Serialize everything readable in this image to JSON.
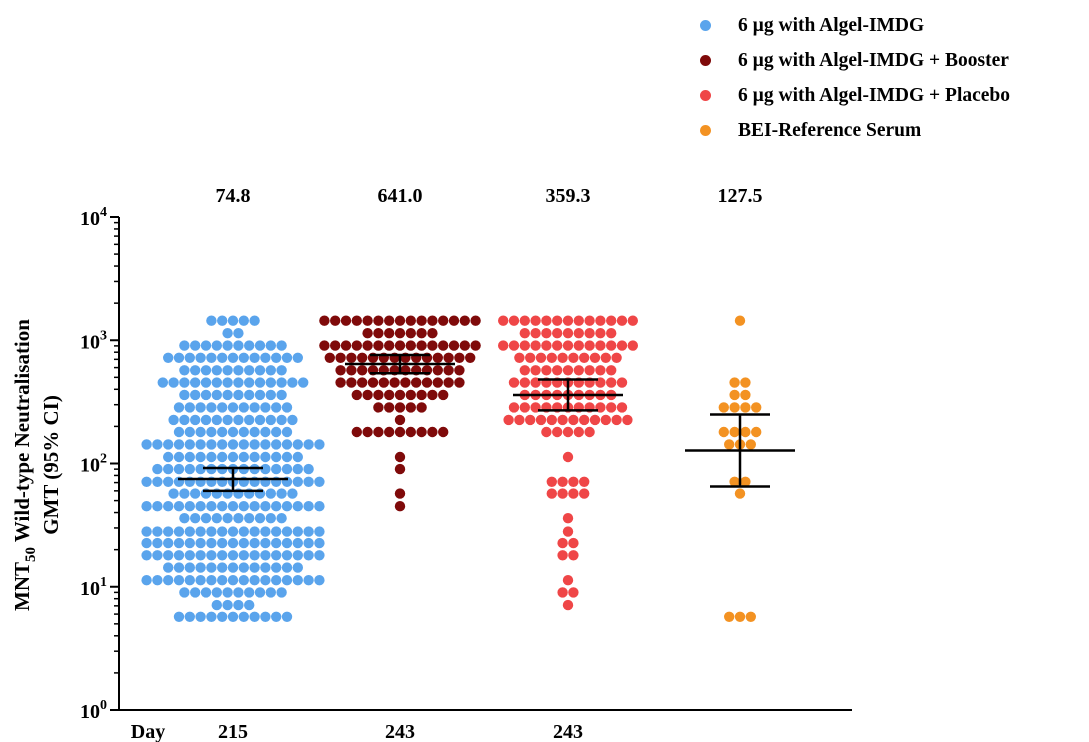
{
  "chart_data": {
    "type": "scatter",
    "ylabel": {
      "pre": "MNT",
      "sub": "50",
      "post": " Wild-type Neutralisation"
    },
    "ylabel2": "GMT  (95% CI)",
    "y_scale": "log",
    "ylim": [
      1,
      10000
    ],
    "y_ticks": [
      {
        "value": 1,
        "base": "10",
        "exp": "0"
      },
      {
        "value": 10,
        "base": "10",
        "exp": "1"
      },
      {
        "value": 100,
        "base": "10",
        "exp": "2"
      },
      {
        "value": 1000,
        "base": "10",
        "exp": "3"
      },
      {
        "value": 10000,
        "base": "10",
        "exp": "4"
      }
    ],
    "x_axis_prefix": "Day",
    "legend_position": "top-right",
    "series": [
      {
        "name": "6 µg with Algel-IMDG",
        "color": "#5aa4ec",
        "day": "215",
        "gmt": 74.8,
        "gmt_label": "74.8",
        "ci": [
          60,
          92
        ],
        "points": [
          {
            "y": 1440,
            "n": 5
          },
          {
            "y": 1140,
            "n": 2
          },
          {
            "y": 905,
            "n": 10
          },
          {
            "y": 720,
            "n": 13
          },
          {
            "y": 570,
            "n": 10
          },
          {
            "y": 453,
            "n": 14
          },
          {
            "y": 360,
            "n": 10
          },
          {
            "y": 285,
            "n": 11
          },
          {
            "y": 226,
            "n": 12
          },
          {
            "y": 180,
            "n": 11
          },
          {
            "y": 143,
            "n": 17
          },
          {
            "y": 113,
            "n": 13
          },
          {
            "y": 90,
            "n": 15
          },
          {
            "y": 71,
            "n": 17
          },
          {
            "y": 57,
            "n": 12
          },
          {
            "y": 45,
            "n": 17
          },
          {
            "y": 36,
            "n": 10
          },
          {
            "y": 28,
            "n": 17
          },
          {
            "y": 22.6,
            "n": 17
          },
          {
            "y": 18,
            "n": 17
          },
          {
            "y": 14.3,
            "n": 13
          },
          {
            "y": 11.3,
            "n": 17
          },
          {
            "y": 9,
            "n": 10
          },
          {
            "y": 7.1,
            "n": 4
          },
          {
            "y": 5.7,
            "n": 11
          }
        ]
      },
      {
        "name": "6 µg with Algel-IMDG + Booster",
        "color": "#7f0a0a",
        "day": "243",
        "gmt": 641.0,
        "gmt_label": "641.0",
        "ci": [
          540,
          760
        ],
        "points": [
          {
            "y": 1440,
            "n": 15
          },
          {
            "y": 1140,
            "n": 7
          },
          {
            "y": 905,
            "n": 15
          },
          {
            "y": 720,
            "n": 14
          },
          {
            "y": 570,
            "n": 12
          },
          {
            "y": 453,
            "n": 12
          },
          {
            "y": 360,
            "n": 9
          },
          {
            "y": 285,
            "n": 5
          },
          {
            "y": 226,
            "n": 1
          },
          {
            "y": 180,
            "n": 9
          },
          {
            "y": 113,
            "n": 1
          },
          {
            "y": 90,
            "n": 1
          },
          {
            "y": 57,
            "n": 1
          },
          {
            "y": 45,
            "n": 1
          }
        ]
      },
      {
        "name": "6 µg with Algel-IMDG + Placebo",
        "color": "#ef4647",
        "day": "243",
        "gmt": 359.3,
        "gmt_label": "359.3",
        "ci": [
          270,
          480
        ],
        "points": [
          {
            "y": 1440,
            "n": 13
          },
          {
            "y": 1140,
            "n": 9
          },
          {
            "y": 905,
            "n": 13
          },
          {
            "y": 720,
            "n": 10
          },
          {
            "y": 570,
            "n": 9
          },
          {
            "y": 453,
            "n": 11
          },
          {
            "y": 360,
            "n": 9
          },
          {
            "y": 285,
            "n": 11
          },
          {
            "y": 226,
            "n": 12
          },
          {
            "y": 180,
            "n": 5
          },
          {
            "y": 113,
            "n": 1
          },
          {
            "y": 71,
            "n": 4
          },
          {
            "y": 57,
            "n": 4
          },
          {
            "y": 36,
            "n": 1
          },
          {
            "y": 28,
            "n": 1
          },
          {
            "y": 22.6,
            "n": 2
          },
          {
            "y": 18,
            "n": 2
          },
          {
            "y": 11.3,
            "n": 1
          },
          {
            "y": 9,
            "n": 2
          },
          {
            "y": 7.1,
            "n": 1
          }
        ]
      },
      {
        "name": "BEI-Reference Serum",
        "color": "#f39222",
        "day": "",
        "gmt": 127.5,
        "gmt_label": "127.5",
        "ci": [
          65,
          250
        ],
        "points": [
          {
            "y": 1440,
            "n": 1
          },
          {
            "y": 453,
            "n": 2
          },
          {
            "y": 360,
            "n": 2
          },
          {
            "y": 285,
            "n": 4
          },
          {
            "y": 180,
            "n": 4
          },
          {
            "y": 143,
            "n": 3
          },
          {
            "y": 71,
            "n": 2
          },
          {
            "y": 57,
            "n": 1
          },
          {
            "y": 5.7,
            "n": 3
          }
        ]
      }
    ]
  }
}
